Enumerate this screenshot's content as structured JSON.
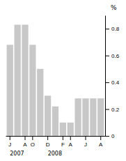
{
  "chart_data": {
    "type": "bar",
    "categories": [
      "J",
      null,
      "A",
      "O",
      null,
      "D",
      null,
      "F",
      "A",
      null,
      "J",
      null,
      "A"
    ],
    "values": [
      0.68,
      0.83,
      0.83,
      0.68,
      0.5,
      0.3,
      0.22,
      0.1,
      0.1,
      0.28,
      0.28,
      0.28,
      0.28
    ],
    "color": "#c8c8c8",
    "y_label": "%",
    "ylim": [
      0,
      0.9
    ],
    "yticks": [
      0,
      0.2,
      0.4,
      0.6,
      0.8
    ],
    "grid": false,
    "annotations": [
      {
        "text": "2007",
        "x": 0
      },
      {
        "text": "2008",
        "x": 5
      }
    ]
  }
}
